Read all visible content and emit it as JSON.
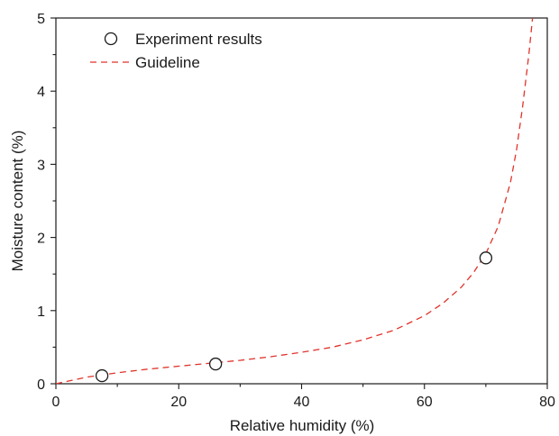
{
  "chart_data": {
    "type": "scatter",
    "title": "",
    "xlabel": "Relative humidity (%)",
    "ylabel": "Moisture content (%)",
    "xlim": [
      0,
      80
    ],
    "ylim": [
      0,
      5
    ],
    "x_ticks": [
      0,
      20,
      40,
      60,
      80
    ],
    "y_ticks": [
      0,
      1,
      2,
      3,
      4,
      5
    ],
    "grid": false,
    "legend_position": "top-left",
    "series": [
      {
        "name": "Experiment results",
        "kind": "scatter",
        "marker": "open-circle",
        "color": "#1a1a1a",
        "x": [
          7.5,
          26,
          70
        ],
        "y": [
          0.11,
          0.27,
          1.72
        ]
      },
      {
        "name": "Guideline",
        "kind": "line",
        "style": "dashed",
        "color": "#e0332b",
        "x": [
          0,
          5,
          10,
          15,
          20,
          25,
          30,
          35,
          40,
          45,
          50,
          55,
          60,
          63,
          66,
          68,
          70,
          72,
          74,
          75,
          76,
          77,
          77.6
        ],
        "y": [
          0,
          0.09,
          0.15,
          0.2,
          0.24,
          0.28,
          0.32,
          0.37,
          0.43,
          0.5,
          0.6,
          0.73,
          0.93,
          1.1,
          1.32,
          1.52,
          1.78,
          2.15,
          2.75,
          3.2,
          3.8,
          4.5,
          5.0
        ]
      }
    ]
  }
}
